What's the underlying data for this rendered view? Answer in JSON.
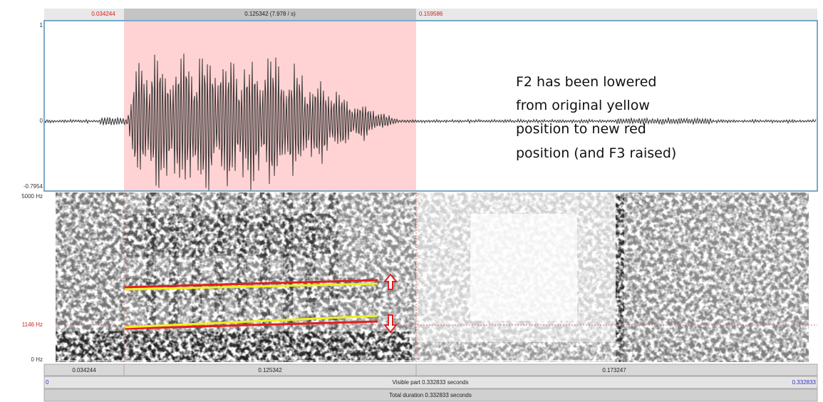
{
  "time_bar_top": {
    "selection_start": "0.034244",
    "selection_duration": "0.125342 (7.978 / s)",
    "selection_end": "0.159586"
  },
  "waveform": {
    "y_max": "1",
    "y_zero": "0",
    "y_min": "-0.7954"
  },
  "spectrogram": {
    "freq_max": "5000 Hz",
    "freq_cursor": "1146 Hz",
    "freq_min": "0 Hz"
  },
  "annotation": {
    "lines": [
      "F2 has been lowered",
      "from original yellow",
      "position to new red",
      "position (and F3 raised)"
    ]
  },
  "time_bar_bottom": {
    "window_start": "0.034244",
    "selection_duration": "0.125342",
    "after_selection": "0.173247"
  },
  "visible_bar": {
    "start": "0",
    "label": "Visible part 0.332833 seconds",
    "end": "0.332833"
  },
  "total_bar": {
    "label": "Total duration 0.332833 seconds"
  }
}
